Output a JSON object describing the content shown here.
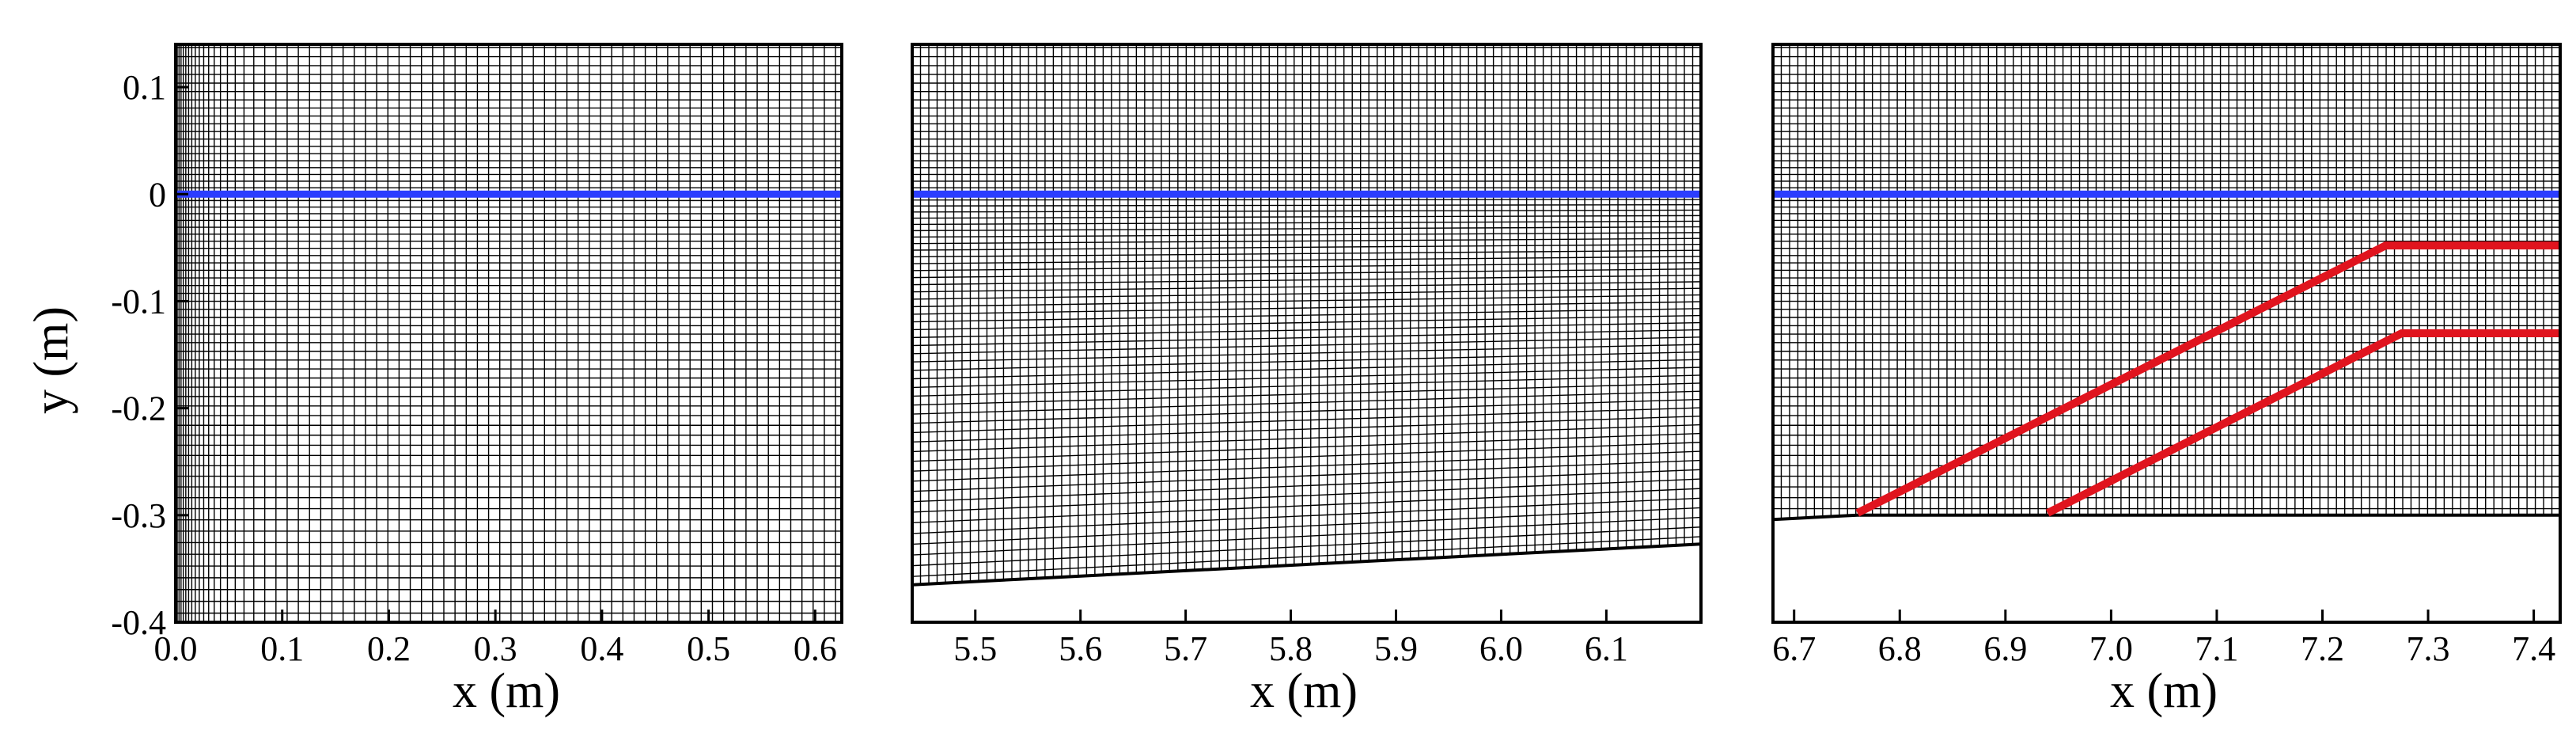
{
  "chart_data": [
    {
      "type": "mesh",
      "xlabel": "x (m)",
      "ylabel": "y (m)",
      "xlim": [
        0.0,
        0.625
      ],
      "ylim": [
        -0.4,
        0.14
      ],
      "xticks": [
        {
          "value": 0.0,
          "label": "0.0"
        },
        {
          "value": 0.1,
          "label": "0.1"
        },
        {
          "value": 0.2,
          "label": "0.2"
        },
        {
          "value": 0.3,
          "label": "0.3"
        },
        {
          "value": 0.4,
          "label": "0.4"
        },
        {
          "value": 0.5,
          "label": "0.5"
        },
        {
          "value": 0.6,
          "label": "0.6"
        }
      ],
      "yticks": [
        {
          "value": 0.1,
          "label": "0.1"
        },
        {
          "value": 0.0,
          "label": "0"
        },
        {
          "value": -0.1,
          "label": "-0.1"
        },
        {
          "value": -0.2,
          "label": "-0.2"
        },
        {
          "value": -0.3,
          "label": "-0.3"
        },
        {
          "value": -0.4,
          "label": "-0.4"
        }
      ],
      "free_surface": {
        "y": 0.0,
        "color": "#2b3dff"
      },
      "bottom": [
        [
          0.0,
          -0.4
        ],
        [
          0.625,
          -0.4
        ]
      ],
      "mesh": "structured, refined near x=0"
    },
    {
      "type": "mesh",
      "xlabel": "x (m)",
      "ylabel": "",
      "xlim": [
        5.44,
        6.19
      ],
      "ylim": [
        -0.4,
        0.14
      ],
      "xticks": [
        {
          "value": 5.5,
          "label": "5.5"
        },
        {
          "value": 5.6,
          "label": "5.6"
        },
        {
          "value": 5.7,
          "label": "5.7"
        },
        {
          "value": 5.8,
          "label": "5.8"
        },
        {
          "value": 5.9,
          "label": "5.9"
        },
        {
          "value": 6.0,
          "label": "6.0"
        },
        {
          "value": 6.1,
          "label": "6.1"
        }
      ],
      "yticks": [],
      "free_surface": {
        "y": 0.0,
        "color": "#2b3dff"
      },
      "bottom": [
        [
          5.44,
          -0.365
        ],
        [
          6.19,
          -0.327
        ]
      ],
      "mesh": "structured, sloping bed"
    },
    {
      "type": "mesh",
      "xlabel": "x (m)",
      "ylabel": "",
      "xlim": [
        6.68,
        7.425
      ],
      "ylim": [
        -0.4,
        0.14
      ],
      "xticks": [
        {
          "value": 6.7,
          "label": "6.7"
        },
        {
          "value": 6.8,
          "label": "6.8"
        },
        {
          "value": 6.9,
          "label": "6.9"
        },
        {
          "value": 7.0,
          "label": "7.0"
        },
        {
          "value": 7.1,
          "label": "7.1"
        },
        {
          "value": 7.2,
          "label": "7.2"
        },
        {
          "value": 7.3,
          "label": "7.3"
        },
        {
          "value": 7.4,
          "label": "7.4"
        }
      ],
      "yticks": [],
      "free_surface": {
        "y": 0.0,
        "color": "#2b3dff"
      },
      "bottom": [
        [
          6.68,
          -0.304
        ],
        [
          6.76,
          -0.3
        ],
        [
          7.425,
          -0.3
        ]
      ],
      "structures": {
        "color": "#e0141e",
        "lines": [
          [
            [
              6.76,
              -0.298
            ],
            [
              7.26,
              -0.048
            ],
            [
              7.425,
              -0.048
            ]
          ],
          [
            [
              6.94,
              -0.298
            ],
            [
              7.275,
              -0.13
            ],
            [
              7.425,
              -0.13
            ]
          ]
        ]
      },
      "mesh": "unstructured quad near structures, structured far field"
    }
  ]
}
